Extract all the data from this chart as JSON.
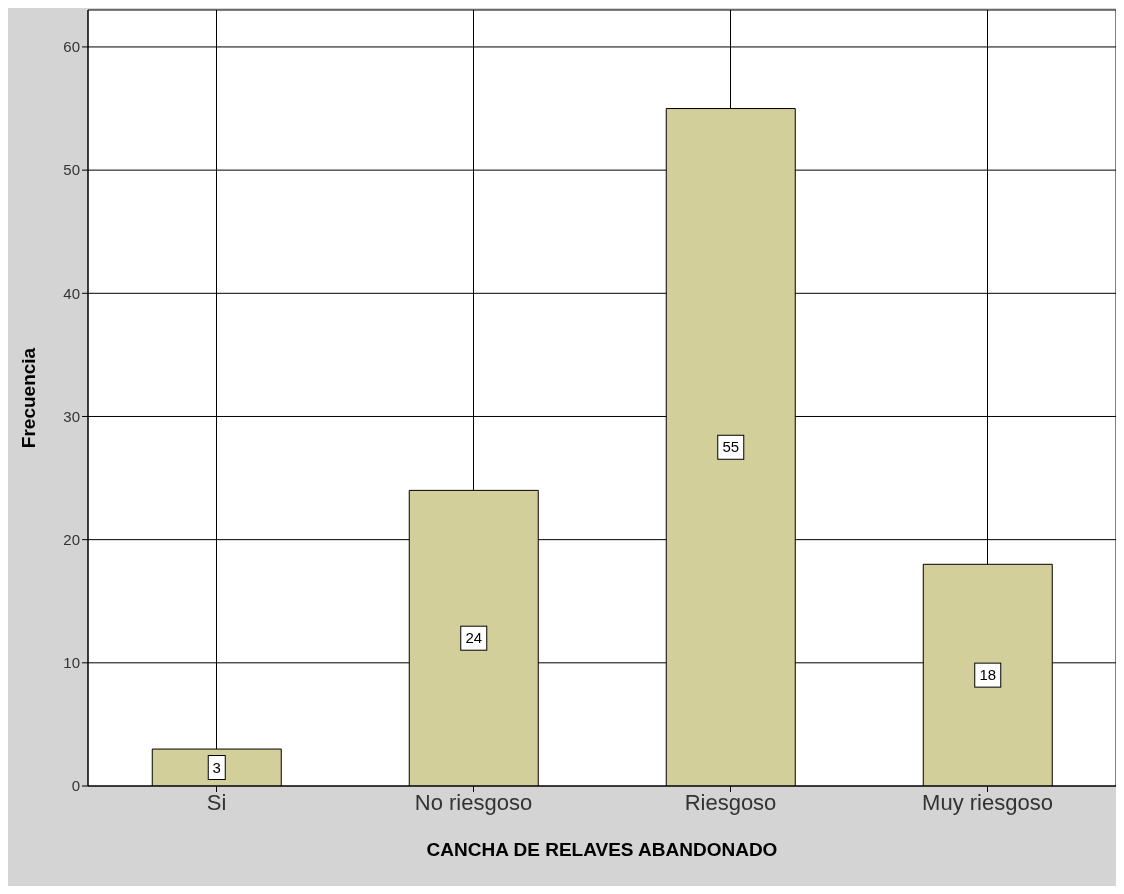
{
  "chart_data": {
    "type": "bar",
    "xlabel": "CANCHA DE RELAVES ABANDONADO",
    "ylabel": "Frecuencia",
    "categories": [
      "Si",
      "No riesgoso",
      "Riesgoso",
      "Muy riesgoso"
    ],
    "values": [
      3,
      24,
      55,
      18
    ],
    "color": "#d3cf9a",
    "ylim": [
      0,
      63
    ],
    "yticks": [
      0,
      10,
      20,
      30,
      40,
      50,
      60
    ],
    "grid": true,
    "data_labels": true
  }
}
